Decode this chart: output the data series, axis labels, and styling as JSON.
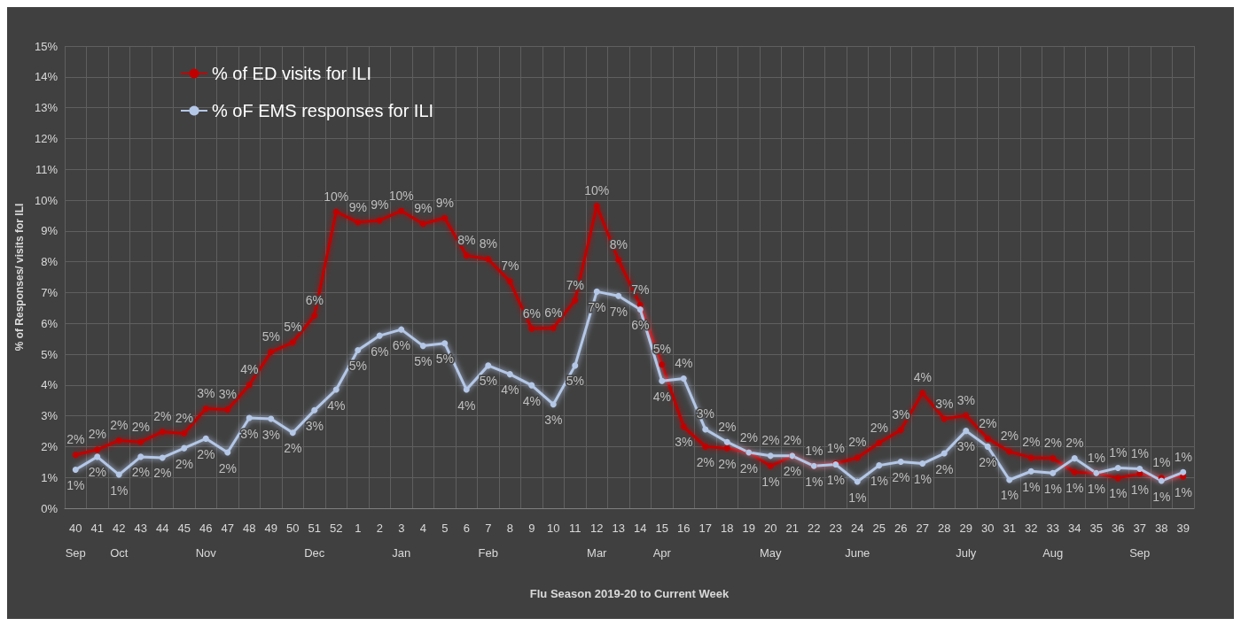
{
  "chart_data": {
    "type": "line",
    "xlabel": "Flu Season 2019-20 to Current Week",
    "ylabel": "% of Responses/ visits for ILI",
    "categories": [
      "40\nSep",
      "41",
      "42\nOct",
      "43",
      "44",
      "45",
      "46\nNov",
      "47",
      "48",
      "49",
      "50",
      "51\nDec",
      "52",
      "1",
      "2",
      "3\nJan",
      "4",
      "5",
      "6",
      "7\nFeb",
      "8",
      "9",
      "10",
      "11",
      "12\nMar",
      "13",
      "14",
      "15\nApr",
      "16",
      "17",
      "18",
      "19",
      "20\nMay",
      "21",
      "22",
      "23",
      "24\nJune",
      "25",
      "26",
      "27",
      "28",
      "29\nJuly",
      "30",
      "31",
      "32",
      "33\nAug",
      "34",
      "35",
      "36",
      "37\nSep",
      "38",
      "39"
    ],
    "series": [
      {
        "name": "% of ED visits for ILI",
        "color": "#c00000",
        "values": [
          1.73,
          1.9,
          2.2,
          2.15,
          2.48,
          2.43,
          3.23,
          3.2,
          4.0,
          5.07,
          5.38,
          6.25,
          9.62,
          9.28,
          9.34,
          9.65,
          9.23,
          9.42,
          8.2,
          8.08,
          7.36,
          5.83,
          5.85,
          6.75,
          9.81,
          8.06,
          6.6,
          4.66,
          2.65,
          2.0,
          1.95,
          1.81,
          1.37,
          1.7,
          1.37,
          1.45,
          1.64,
          2.12,
          2.54,
          3.74,
          2.9,
          3.01,
          2.26,
          1.84,
          1.64,
          1.62,
          1.17,
          1.14,
          0.98,
          1.12,
          0.98,
          1.03
        ],
        "value_labels": [
          "2%",
          "2%",
          "2%",
          "2%",
          "2%",
          "2%",
          "3%",
          "3%",
          "4%",
          "5%",
          "5%",
          "6%",
          "10%",
          "9%",
          "9%",
          "10%",
          "9%",
          "9%",
          "8%",
          "8%",
          "7%",
          "6%",
          "6%",
          "7%",
          "10%",
          "8%",
          "7%",
          "5%",
          "3%",
          "2%",
          "2%",
          "2%",
          "1%",
          "2%",
          "1%",
          "1%",
          "2%",
          "2%",
          "3%",
          "4%",
          "3%",
          "3%",
          "2%",
          "2%",
          "2%",
          "2%",
          "1%",
          "1%",
          "1%",
          "1%",
          "1%",
          "1%"
        ]
      },
      {
        "name": "% oF EMS responses for ILI",
        "color": "#b4c7e7",
        "values": [
          1.25,
          1.67,
          1.09,
          1.67,
          1.64,
          1.95,
          2.26,
          1.81,
          2.93,
          2.9,
          2.45,
          3.18,
          3.85,
          5.13,
          5.6,
          5.8,
          5.27,
          5.35,
          3.85,
          4.63,
          4.35,
          3.99,
          3.37,
          4.63,
          7.03,
          6.89,
          6.45,
          4.13,
          4.21,
          2.56,
          2.15,
          1.81,
          1.7,
          1.7,
          1.37,
          1.42,
          0.86,
          1.39,
          1.51,
          1.45,
          1.78,
          2.51,
          2.0,
          0.92,
          1.2,
          1.14,
          1.62,
          1.14,
          1.31,
          1.28,
          0.89,
          1.17
        ],
        "value_labels": [
          "1%",
          "2%",
          "1%",
          "2%",
          "2%",
          "2%",
          "2%",
          "2%",
          "3%",
          "3%",
          "2%",
          "3%",
          "4%",
          "5%",
          "6%",
          "6%",
          "5%",
          "5%",
          "4%",
          "5%",
          "4%",
          "4%",
          "3%",
          "5%",
          "7%",
          "7%",
          "6%",
          "4%",
          "4%",
          "3%",
          "2%",
          "2%",
          "2%",
          "2%",
          "1%",
          "1%",
          "1%",
          "1%",
          "2%",
          "1%",
          "2%",
          "3%",
          "2%",
          "1%",
          "1%",
          "1%",
          "2%",
          "1%",
          "1%",
          "1%",
          "1%",
          "1%"
        ]
      }
    ],
    "ylim": [
      0,
      15
    ],
    "yticks": [
      {
        "value": 0,
        "label": "0%"
      },
      {
        "value": 1,
        "label": "1%"
      },
      {
        "value": 2,
        "label": "2%"
      },
      {
        "value": 3,
        "label": "3%"
      },
      {
        "value": 4,
        "label": "4%"
      },
      {
        "value": 5,
        "label": "5%"
      },
      {
        "value": 6,
        "label": "6%"
      },
      {
        "value": 7,
        "label": "7%"
      },
      {
        "value": 8,
        "label": "8%"
      },
      {
        "value": 9,
        "label": "9%"
      },
      {
        "value": 10,
        "label": "10%"
      },
      {
        "value": 11,
        "label": "11%"
      },
      {
        "value": 12,
        "label": "12%"
      },
      {
        "value": 13,
        "label": "13%"
      },
      {
        "value": 14,
        "label": "14%"
      },
      {
        "value": 15,
        "label": "15%"
      }
    ],
    "grid": true,
    "legend": "top left",
    "marker": "circle",
    "line_style": "solid"
  }
}
